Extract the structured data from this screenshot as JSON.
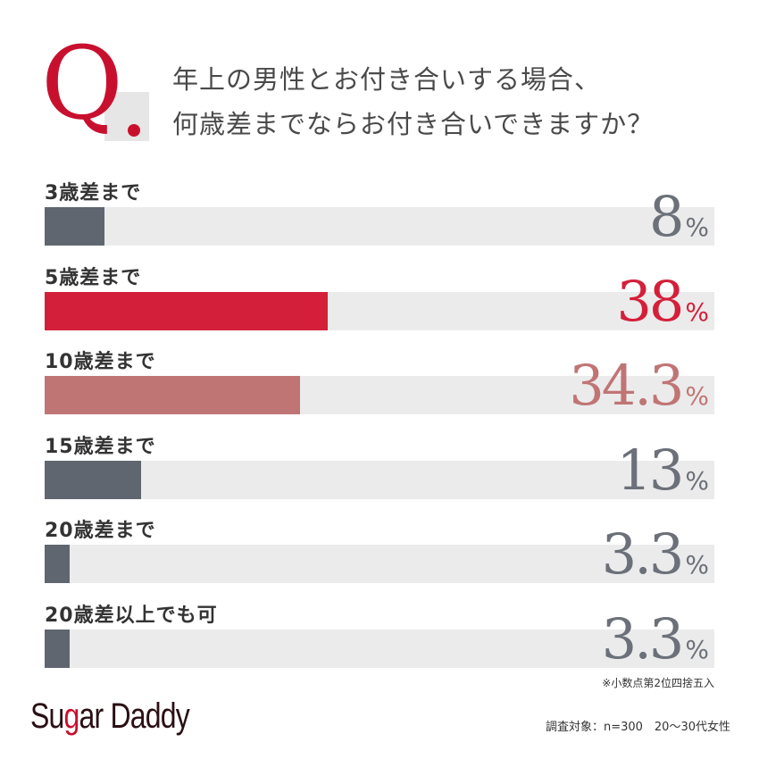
{
  "header": {
    "q_mark": "Q.",
    "question_line1": "年上の男性とお付き合いする場合、",
    "question_line2": "何歳差までならお付き合いできますか？"
  },
  "chart_data": {
    "type": "bar",
    "orientation": "horizontal",
    "xlim": [
      0,
      90
    ],
    "categories": [
      "3歳差まで",
      "5歳差まで",
      "10歳差まで",
      "15歳差まで",
      "20歳差まで",
      "20歳差以上でも可"
    ],
    "values": [
      8,
      38,
      34.3,
      13,
      3.3,
      3.3
    ],
    "value_labels": [
      "8",
      "38",
      "34.3",
      "13",
      "3.3",
      "3.3"
    ],
    "unit": "%",
    "colors": [
      "#5f6670",
      "#d41f3a",
      "#c07575",
      "#5f6670",
      "#5f6670",
      "#5f6670"
    ],
    "label_colors": [
      "#6b7079",
      "#d41f3a",
      "#c07575",
      "#6b7079",
      "#6b7079",
      "#6b7079"
    ],
    "track_color": "#ebebeb"
  },
  "footer": {
    "note": "※小数点第2位四捨五入",
    "logo_prefix": "Su",
    "logo_g": "g",
    "logo_suffix": "ar Daddy",
    "survey": "調査対象：n=300　20～30代女性"
  }
}
